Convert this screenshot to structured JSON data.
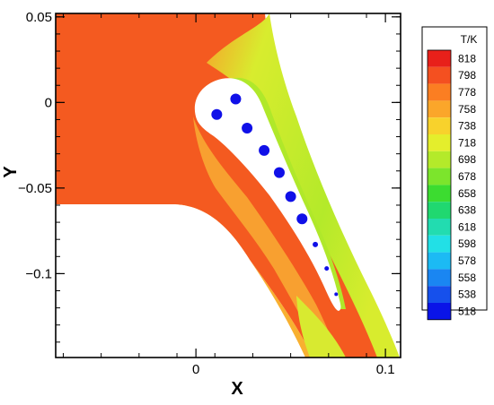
{
  "chart_data": {
    "type": "heatmap",
    "title": "",
    "xlabel": "X",
    "ylabel": "Y",
    "xlim": [
      -0.074,
      0.108
    ],
    "ylim": [
      -0.149,
      0.052
    ],
    "x_ticks": [
      {
        "value": 0,
        "label": "0"
      },
      {
        "value": 0.1,
        "label": "0.1"
      }
    ],
    "y_ticks": [
      {
        "value": 0.05,
        "label": "0.05"
      },
      {
        "value": 0,
        "label": "0"
      },
      {
        "value": -0.05,
        "label": "−0.05"
      },
      {
        "value": -0.1,
        "label": "−0.1"
      }
    ],
    "grid": false,
    "legend": {
      "title": "T/K",
      "placement": "right",
      "levels": [
        818,
        798,
        778,
        758,
        738,
        718,
        698,
        678,
        658,
        638,
        618,
        598,
        578,
        558,
        538,
        518
      ],
      "colors": [
        "#e8201a",
        "#f45020",
        "#fb7e22",
        "#fba62a",
        "#f8d22c",
        "#e4ee2c",
        "#b4ea2a",
        "#7ce52c",
        "#3cdc30",
        "#20d870",
        "#22dcb0",
        "#22e0e6",
        "#1cbaf4",
        "#1a86f2",
        "#1650ec",
        "#0a14e8"
      ]
    },
    "value_range": [
      518,
      818
    ],
    "cooling_holes": [
      {
        "x": 0.011,
        "y": -0.007
      },
      {
        "x": 0.021,
        "y": 0.002
      },
      {
        "x": 0.027,
        "y": -0.015
      },
      {
        "x": 0.036,
        "y": -0.028
      },
      {
        "x": 0.044,
        "y": -0.041
      },
      {
        "x": 0.05,
        "y": -0.055
      },
      {
        "x": 0.056,
        "y": -0.068
      },
      {
        "x": 0.063,
        "y": -0.083
      },
      {
        "x": 0.069,
        "y": -0.097
      },
      {
        "x": 0.074,
        "y": -0.112
      }
    ]
  }
}
